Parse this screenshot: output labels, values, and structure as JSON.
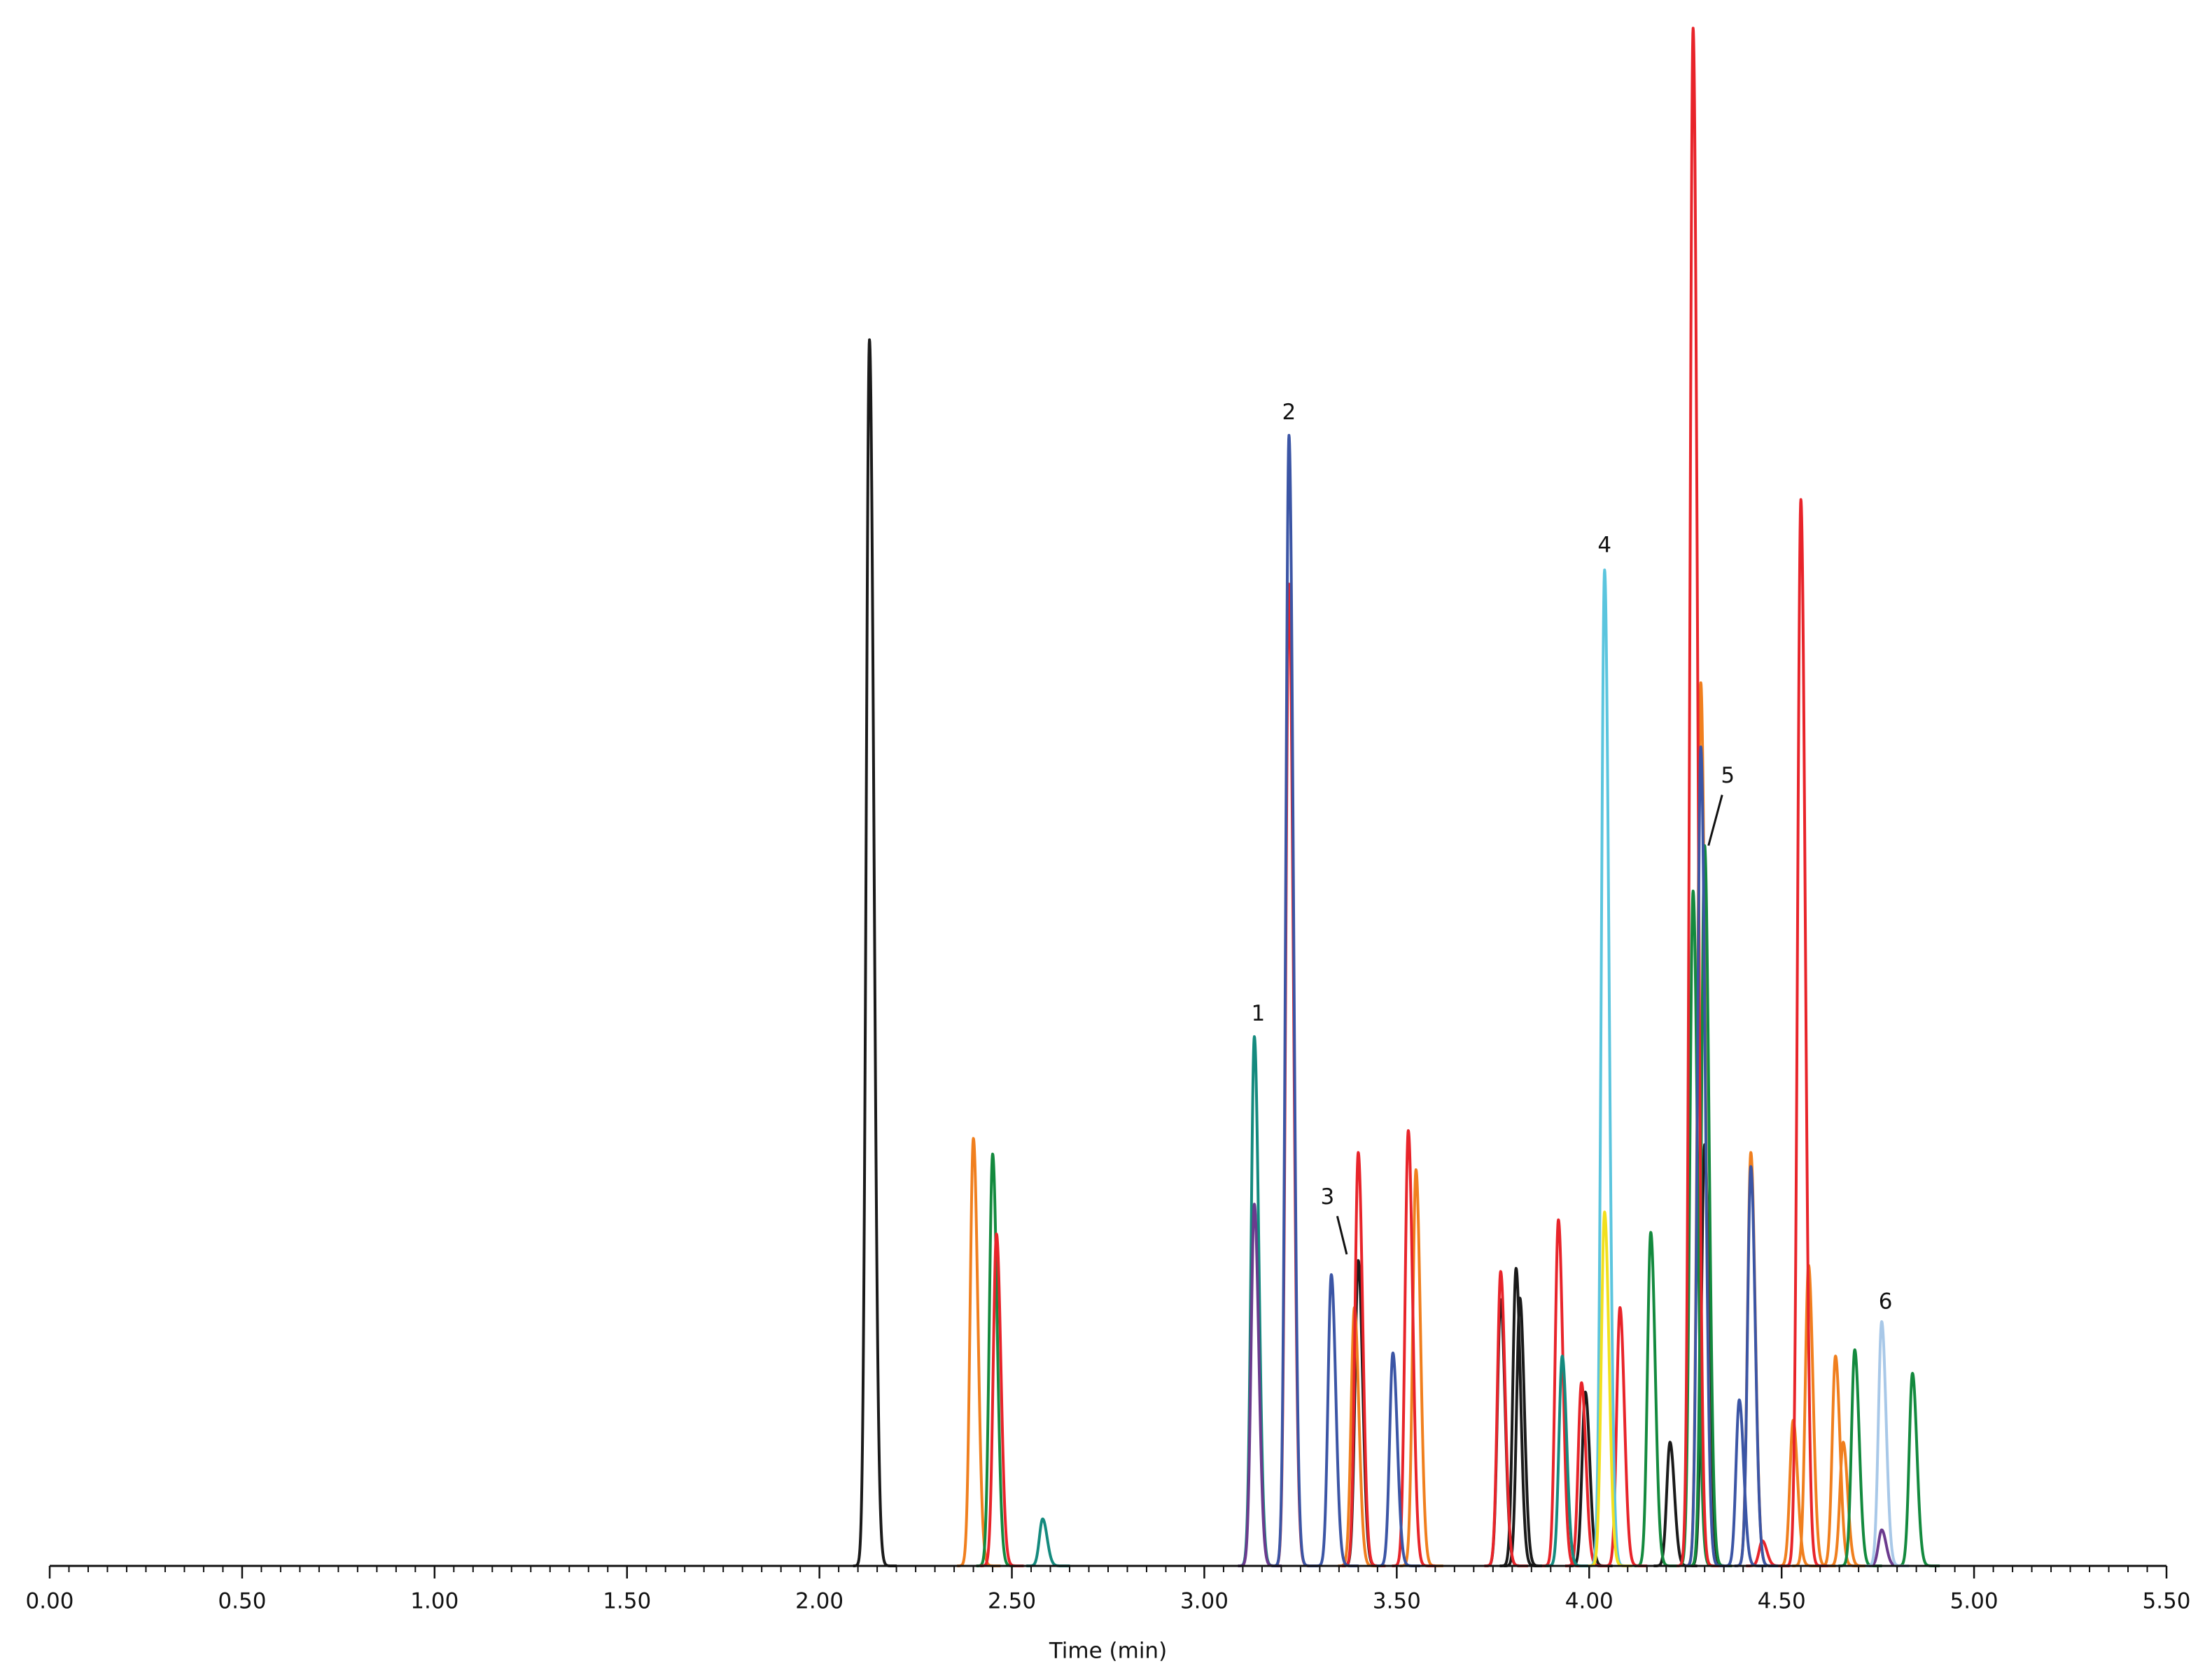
{
  "chart_data": {
    "type": "chromatogram",
    "x_label": "Time (min)",
    "xlim": [
      0,
      5.5
    ],
    "ylim": [
      0,
      100
    ],
    "xticks": [
      {
        "value": 0,
        "label": "0.00"
      },
      {
        "value": 0.5,
        "label": "0.50"
      },
      {
        "value": 1,
        "label": "1.00"
      },
      {
        "value": 1.5,
        "label": "1.50"
      },
      {
        "value": 2,
        "label": "2.00"
      },
      {
        "value": 2.5,
        "label": "2.50"
      },
      {
        "value": 3,
        "label": "3.00"
      },
      {
        "value": 3.5,
        "label": "3.50"
      },
      {
        "value": 4,
        "label": "4.00"
      },
      {
        "value": 4.5,
        "label": "4.50"
      },
      {
        "value": 5,
        "label": "5.00"
      },
      {
        "value": 5.5,
        "label": "5.50"
      }
    ],
    "xminorticks": [
      0.05,
      0.1,
      0.15,
      0.2,
      0.25,
      0.3,
      0.35,
      0.4,
      0.45,
      0.55,
      0.6,
      0.65,
      0.7,
      0.75,
      0.8,
      0.85,
      0.9,
      0.95,
      1.05,
      1.1,
      1.15,
      1.2,
      1.25,
      1.3,
      1.35,
      1.4,
      1.45,
      1.55,
      1.6,
      1.65,
      1.7,
      1.75,
      1.8,
      1.85,
      1.9,
      1.95,
      2.05,
      2.1,
      2.15,
      2.2,
      2.25,
      2.3,
      2.35,
      2.4,
      2.45,
      2.55,
      2.6,
      2.65,
      2.7,
      2.75,
      2.8,
      2.85,
      2.9,
      2.95,
      3.05,
      3.1,
      3.15,
      3.2,
      3.25,
      3.3,
      3.35,
      3.4,
      3.45,
      3.55,
      3.6,
      3.65,
      3.7,
      3.75,
      3.8,
      3.85,
      3.9,
      3.95,
      4.05,
      4.1,
      4.15,
      4.2,
      4.25,
      4.3,
      4.35,
      4.4,
      4.45,
      4.55,
      4.6,
      4.65,
      4.7,
      4.75,
      4.8,
      4.85,
      4.9,
      4.95,
      5.05,
      5.1,
      5.15,
      5.2,
      5.25,
      5.3,
      5.35,
      5.4,
      5.45
    ],
    "series": [
      {
        "color": "#1a1a1a",
        "x": [
          2.13,
          3.4,
          3.77,
          3.81,
          3.82,
          3.99,
          4.21,
          4.3
        ],
        "values": [
          78.3,
          19.5,
          17.0,
          19.0,
          17.1,
          11.1,
          7.9,
          26.9
        ]
      },
      {
        "color": "#f07f1e",
        "x": [
          2.4,
          3.39,
          3.55,
          4.29,
          4.42,
          4.53,
          4.57,
          4.64,
          4.66
        ],
        "values": [
          27.3,
          16.5,
          25.3,
          56.4,
          26.4,
          9.3,
          19.2,
          13.4,
          7.9
        ]
      },
      {
        "color": "#138a3e",
        "x": [
          2.45,
          4.16,
          4.27,
          4.3,
          4.69,
          4.84
        ],
        "values": [
          26.3,
          21.3,
          43.1,
          46.0,
          13.8,
          12.3
        ]
      },
      {
        "color": "#e8242a",
        "x": [
          2.46,
          3.22,
          3.4,
          3.53,
          3.77,
          3.92,
          3.98,
          4.08,
          4.27,
          4.45,
          4.55
        ],
        "values": [
          21.2,
          62.7,
          26.4,
          27.8,
          18.8,
          22.1,
          11.7,
          16.5,
          98.2,
          1.6,
          68.1
        ]
      },
      {
        "color": "#148a7e",
        "x": [
          2.58,
          3.13,
          3.93
        ],
        "values": [
          3.0,
          33.8,
          13.4
        ]
      },
      {
        "color": "#6b3b8e",
        "x": [
          3.13,
          4.76
        ],
        "values": [
          23.1,
          2.3
        ]
      },
      {
        "color": "#3b55a5",
        "x": [
          3.22,
          3.33,
          3.49,
          4.29,
          4.39,
          4.42
        ],
        "values": [
          72.2,
          18.6,
          13.6,
          52.3,
          10.6,
          25.5
        ]
      },
      {
        "color": "#5bc5de",
        "x": [
          4.04
        ],
        "values": [
          63.6
        ]
      },
      {
        "color": "#f2e01e",
        "x": [
          4.04
        ],
        "values": [
          22.6
        ]
      },
      {
        "color": "#a8c8e8",
        "x": [
          4.76
        ],
        "values": [
          15.6
        ]
      }
    ],
    "annotations": [
      {
        "text": "1",
        "x": 3.14,
        "y": 35.2
      },
      {
        "text": "2",
        "x": 3.22,
        "y": 73.6
      },
      {
        "text": "3",
        "x": 3.32,
        "y": 23.5,
        "arrow": [
          3.37,
          19.9
        ]
      },
      {
        "text": "4",
        "x": 4.04,
        "y": 65.1
      },
      {
        "text": "5",
        "x": 4.36,
        "y": 50.4,
        "arrow": [
          4.31,
          46.0
        ]
      },
      {
        "text": "6",
        "x": 4.77,
        "y": 16.8
      }
    ]
  }
}
